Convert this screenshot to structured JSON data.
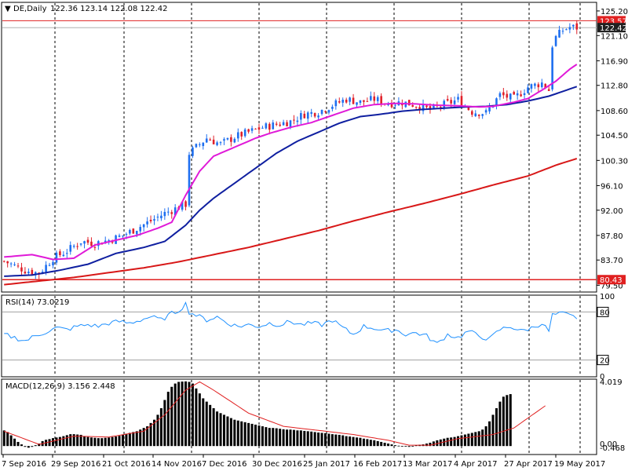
{
  "header": {
    "symbol": "DE,Daily",
    "ohlc": "122.36 123.14 122.08 122.42"
  },
  "colors": {
    "bull": "#1e6ff0",
    "bear": "#e0202a",
    "ma_short": "#e01ad8",
    "ma_mid": "#0f1fa0",
    "ma_long": "#d81818",
    "rsi": "#1e90ff",
    "macd_hist": "#000000",
    "macd_signal": "#e02020",
    "grid": "#000000"
  },
  "chart_data": [
    {
      "type": "candlestick",
      "title": "DE,Daily",
      "ylim": [
        78.5,
        126.5
      ],
      "y_ticks": [
        "125.20",
        "121.10",
        "116.90",
        "112.80",
        "108.60",
        "104.50",
        "100.30",
        "96.10",
        "92.00",
        "87.80",
        "83.70",
        "79.50"
      ],
      "price_labels": [
        {
          "text": "123.57",
          "value": 123.57,
          "style": "red"
        },
        {
          "text": "122.42",
          "value": 122.42,
          "style": "dark"
        },
        {
          "text": "80.43",
          "value": 80.43,
          "style": "red"
        }
      ],
      "close_trend": [
        [
          0,
          83.5
        ],
        [
          6,
          82.0
        ],
        [
          10,
          81.5
        ],
        [
          14,
          84.0
        ],
        [
          18,
          85.2
        ],
        [
          22,
          86.8
        ],
        [
          26,
          86.5
        ],
        [
          30,
          87.0
        ],
        [
          34,
          87.8
        ],
        [
          38,
          89.0
        ],
        [
          42,
          90.2
        ],
        [
          46,
          91.5
        ],
        [
          50,
          92.5
        ],
        [
          52,
          93.0
        ],
        [
          53,
          101.5
        ],
        [
          55,
          102.5
        ],
        [
          58,
          104.0
        ],
        [
          62,
          103.0
        ],
        [
          66,
          104.2
        ],
        [
          70,
          105.0
        ],
        [
          74,
          105.8
        ],
        [
          78,
          106.3
        ],
        [
          82,
          106.8
        ],
        [
          86,
          108.0
        ],
        [
          90,
          108.4
        ],
        [
          94,
          109.5
        ],
        [
          98,
          110.5
        ],
        [
          102,
          110.0
        ],
        [
          106,
          110.5
        ],
        [
          110,
          109.8
        ],
        [
          114,
          110.0
        ],
        [
          118,
          109.5
        ],
        [
          122,
          108.7
        ],
        [
          126,
          109.6
        ],
        [
          130,
          110.4
        ],
        [
          134,
          108.4
        ],
        [
          138,
          108.2
        ],
        [
          142,
          111.2
        ],
        [
          146,
          110.6
        ],
        [
          150,
          112.5
        ],
        [
          154,
          113.2
        ],
        [
          156,
          112.0
        ],
        [
          157,
          119.5
        ],
        [
          158,
          120.8
        ],
        [
          160,
          122.0
        ],
        [
          162,
          122.5
        ],
        [
          164,
          122.42
        ]
      ],
      "ma_short": [
        [
          0,
          84.2
        ],
        [
          8,
          84.6
        ],
        [
          14,
          83.8
        ],
        [
          20,
          84.0
        ],
        [
          26,
          86.2
        ],
        [
          32,
          87.0
        ],
        [
          38,
          87.8
        ],
        [
          44,
          89.0
        ],
        [
          48,
          90.0
        ],
        [
          52,
          94.5
        ],
        [
          56,
          98.5
        ],
        [
          60,
          101.0
        ],
        [
          64,
          102.0
        ],
        [
          68,
          103.0
        ],
        [
          72,
          104.0
        ],
        [
          76,
          104.8
        ],
        [
          82,
          105.8
        ],
        [
          88,
          106.6
        ],
        [
          94,
          107.8
        ],
        [
          100,
          109.0
        ],
        [
          106,
          109.6
        ],
        [
          112,
          109.8
        ],
        [
          118,
          109.7
        ],
        [
          124,
          109.5
        ],
        [
          130,
          109.4
        ],
        [
          136,
          109.2
        ],
        [
          140,
          109.3
        ],
        [
          146,
          110.0
        ],
        [
          150,
          110.6
        ],
        [
          154,
          112.0
        ],
        [
          158,
          113.5
        ],
        [
          162,
          115.5
        ],
        [
          164,
          116.3
        ]
      ],
      "ma_mid": [
        [
          0,
          81.0
        ],
        [
          8,
          81.2
        ],
        [
          16,
          82.0
        ],
        [
          24,
          83.0
        ],
        [
          32,
          84.8
        ],
        [
          40,
          85.8
        ],
        [
          46,
          86.8
        ],
        [
          52,
          89.5
        ],
        [
          56,
          92.0
        ],
        [
          60,
          94.0
        ],
        [
          66,
          96.5
        ],
        [
          72,
          99.0
        ],
        [
          78,
          101.5
        ],
        [
          84,
          103.5
        ],
        [
          90,
          105.0
        ],
        [
          96,
          106.5
        ],
        [
          102,
          107.6
        ],
        [
          108,
          108.0
        ],
        [
          114,
          108.5
        ],
        [
          120,
          108.8
        ],
        [
          126,
          109.0
        ],
        [
          132,
          109.2
        ],
        [
          138,
          109.3
        ],
        [
          144,
          109.6
        ],
        [
          150,
          110.2
        ],
        [
          156,
          111.0
        ],
        [
          160,
          111.8
        ],
        [
          164,
          112.6
        ]
      ],
      "ma_long": [
        [
          0,
          79.6
        ],
        [
          10,
          80.2
        ],
        [
          20,
          80.8
        ],
        [
          30,
          81.6
        ],
        [
          40,
          82.4
        ],
        [
          50,
          83.4
        ],
        [
          60,
          84.6
        ],
        [
          70,
          85.8
        ],
        [
          80,
          87.2
        ],
        [
          90,
          88.6
        ],
        [
          100,
          90.2
        ],
        [
          110,
          91.7
        ],
        [
          120,
          93.1
        ],
        [
          130,
          94.6
        ],
        [
          140,
          96.2
        ],
        [
          150,
          97.7
        ],
        [
          158,
          99.5
        ],
        [
          164,
          100.6
        ]
      ]
    },
    {
      "type": "line",
      "title": "RSI(14) 73.0219",
      "ylim": [
        0,
        100
      ],
      "y_ticks": [
        "100",
        "80",
        "20",
        "0"
      ],
      "levels": [
        80,
        20
      ],
      "level_labels": [
        "80",
        "20"
      ],
      "series": [
        {
          "values": [
            [
              0,
              52
            ],
            [
              3,
              48
            ],
            [
              6,
              44
            ],
            [
              9,
              50
            ],
            [
              12,
              55
            ],
            [
              15,
              60
            ],
            [
              18,
              58
            ],
            [
              21,
              62
            ],
            [
              24,
              64
            ],
            [
              27,
              62
            ],
            [
              30,
              66
            ],
            [
              33,
              68
            ],
            [
              36,
              66
            ],
            [
              39,
              70
            ],
            [
              42,
              74
            ],
            [
              45,
              70
            ],
            [
              48,
              78
            ],
            [
              50,
              82
            ],
            [
              52,
              90
            ],
            [
              53,
              80
            ],
            [
              55,
              76
            ],
            [
              58,
              70
            ],
            [
              61,
              74
            ],
            [
              64,
              66
            ],
            [
              67,
              62
            ],
            [
              70,
              64
            ],
            [
              73,
              62
            ],
            [
              76,
              66
            ],
            [
              79,
              64
            ],
            [
              82,
              68
            ],
            [
              85,
              64
            ],
            [
              88,
              66
            ],
            [
              91,
              64
            ],
            [
              94,
              70
            ],
            [
              97,
              60
            ],
            [
              100,
              52
            ],
            [
              103,
              62
            ],
            [
              106,
              60
            ],
            [
              109,
              56
            ],
            [
              112,
              58
            ],
            [
              115,
              52
            ],
            [
              118,
              54
            ],
            [
              121,
              50
            ],
            [
              124,
              40
            ],
            [
              127,
              52
            ],
            [
              130,
              48
            ],
            [
              133,
              56
            ],
            [
              136,
              50
            ],
            [
              139,
              46
            ],
            [
              142,
              58
            ],
            [
              145,
              62
            ],
            [
              148,
              56
            ],
            [
              151,
              60
            ],
            [
              154,
              66
            ],
            [
              156,
              56
            ],
            [
              157,
              76
            ],
            [
              160,
              78
            ],
            [
              163,
              74
            ],
            [
              164,
              73
            ]
          ]
        }
      ]
    },
    {
      "type": "bar",
      "title": "MACD(12,26,9) 3.156 2.448",
      "ylim": [
        -0.468,
        4.019
      ],
      "y_ticks": [
        "4.019",
        "0.00",
        "-0.468"
      ],
      "histogram": [
        0.95,
        0.85,
        0.65,
        0.45,
        0.25,
        0.1,
        -0.05,
        -0.1,
        -0.05,
        0.05,
        0.15,
        0.3,
        0.38,
        0.42,
        0.48,
        0.52,
        0.55,
        0.6,
        0.66,
        0.72,
        0.72,
        0.7,
        0.68,
        0.6,
        0.55,
        0.52,
        0.5,
        0.48,
        0.48,
        0.5,
        0.52,
        0.55,
        0.58,
        0.62,
        0.68,
        0.75,
        0.8,
        0.85,
        0.9,
        1.0,
        1.1,
        1.2,
        1.4,
        1.6,
        1.9,
        2.3,
        2.8,
        3.3,
        3.6,
        3.8,
        3.9,
        3.92,
        3.93,
        3.9,
        3.8,
        3.5,
        3.2,
        2.9,
        2.7,
        2.5,
        2.3,
        2.1,
        2.0,
        1.9,
        1.8,
        1.7,
        1.6,
        1.55,
        1.5,
        1.45,
        1.4,
        1.35,
        1.3,
        1.25,
        1.2,
        1.15,
        1.1,
        1.1,
        1.08,
        1.05,
        1.02,
        1.0,
        1.0,
        0.98,
        0.95,
        0.95,
        0.92,
        0.9,
        0.88,
        0.85,
        0.82,
        0.8,
        0.78,
        0.75,
        0.72,
        0.7,
        0.68,
        0.65,
        0.6,
        0.58,
        0.55,
        0.52,
        0.5,
        0.45,
        0.42,
        0.38,
        0.35,
        0.3,
        0.25,
        0.2,
        0.15,
        0.1,
        0.05,
        0.02,
        0.0,
        -0.02,
        -0.05,
        0.0,
        0.05,
        0.08,
        0.1,
        0.15,
        0.2,
        0.28,
        0.35,
        0.4,
        0.45,
        0.5,
        0.52,
        0.55,
        0.6,
        0.65,
        0.7,
        0.75,
        0.8,
        0.85,
        0.9,
        1.0,
        1.2,
        1.5,
        1.9,
        2.3,
        2.7,
        3.0,
        3.1,
        3.156
      ],
      "signal": [
        [
          0,
          0.9
        ],
        [
          10,
          0.1
        ],
        [
          20,
          0.6
        ],
        [
          30,
          0.55
        ],
        [
          40,
          0.9
        ],
        [
          46,
          1.9
        ],
        [
          52,
          3.4
        ],
        [
          56,
          3.9
        ],
        [
          60,
          3.4
        ],
        [
          70,
          2.0
        ],
        [
          80,
          1.2
        ],
        [
          90,
          0.95
        ],
        [
          100,
          0.7
        ],
        [
          110,
          0.35
        ],
        [
          116,
          0.05
        ],
        [
          122,
          0.05
        ],
        [
          130,
          0.45
        ],
        [
          140,
          0.7
        ],
        [
          146,
          1.1
        ],
        [
          152,
          2.0
        ],
        [
          155,
          2.448
        ]
      ]
    }
  ],
  "x_labels": [
    "7 Sep 2016",
    "29 Sep 2016",
    "21 Oct 2016",
    "14 Nov 2016",
    "7 Dec 2016",
    "30 Dec 2016",
    "25 Jan 2017",
    "16 Feb 2017",
    "13 Mar 2017",
    "4 Apr 2017",
    "27 Apr 2017",
    "19 May 2017"
  ]
}
